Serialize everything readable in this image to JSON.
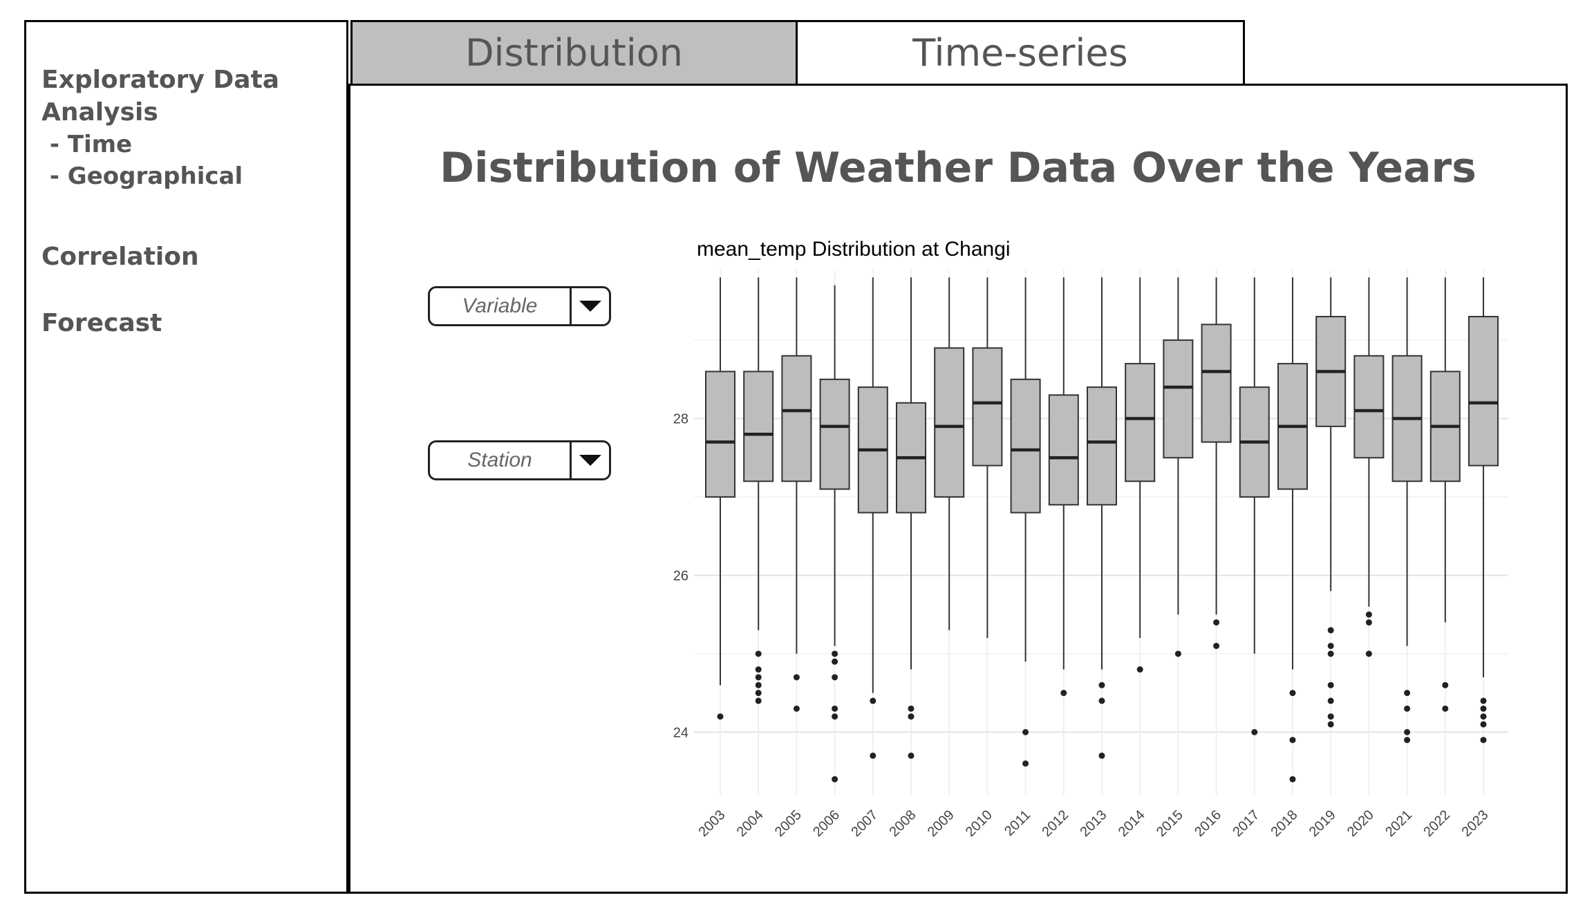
{
  "sidebar": {
    "items": [
      {
        "label": "Exploratory Data"
      },
      {
        "label": "Analysis"
      },
      {
        "label": " - Time"
      },
      {
        "label": " - Geographical"
      },
      {
        "label": "Correlation"
      },
      {
        "label": "Forecast"
      }
    ]
  },
  "tabs": [
    {
      "label": "Distribution",
      "active": true
    },
    {
      "label": "Time-series",
      "active": false
    }
  ],
  "main": {
    "title": "Distribution of Weather Data Over the Years",
    "variable_dropdown": {
      "placeholder": "Variable"
    },
    "station_dropdown": {
      "placeholder": "Station"
    }
  },
  "colors": {
    "active_tab": "#bfbfbf",
    "box_fill": "#bdbdbd",
    "text": "#555555"
  },
  "icons": {
    "dropdown": "caret-down-icon"
  },
  "chart_data": {
    "type": "boxplot",
    "title": "mean_temp Distribution at Changi",
    "xlabel": "",
    "ylabel": "",
    "ylim": [
      23.2,
      29.9
    ],
    "yticks": [
      24,
      26,
      28
    ],
    "grid": true,
    "categories": [
      "2003",
      "2004",
      "2005",
      "2006",
      "2007",
      "2008",
      "2009",
      "2010",
      "2011",
      "2012",
      "2013",
      "2014",
      "2015",
      "2016",
      "2017",
      "2018",
      "2019",
      "2020",
      "2021",
      "2022",
      "2023"
    ],
    "boxes": [
      {
        "q1": 27.0,
        "median": 27.7,
        "q3": 28.6,
        "lower": 24.6,
        "upper": 29.8,
        "outliers": [
          24.2
        ]
      },
      {
        "q1": 27.2,
        "median": 27.8,
        "q3": 28.6,
        "lower": 25.3,
        "upper": 29.8,
        "outliers": [
          25.0,
          24.8,
          24.7,
          24.6,
          24.5,
          24.4
        ]
      },
      {
        "q1": 27.2,
        "median": 28.1,
        "q3": 28.8,
        "lower": 25.0,
        "upper": 29.8,
        "outliers": [
          24.7,
          24.3
        ]
      },
      {
        "q1": 27.1,
        "median": 27.9,
        "q3": 28.5,
        "lower": 25.1,
        "upper": 29.7,
        "outliers": [
          25.0,
          24.9,
          24.7,
          24.3,
          24.2,
          23.4
        ]
      },
      {
        "q1": 26.8,
        "median": 27.6,
        "q3": 28.4,
        "lower": 24.5,
        "upper": 29.8,
        "outliers": [
          24.4,
          23.7
        ]
      },
      {
        "q1": 26.8,
        "median": 27.5,
        "q3": 28.2,
        "lower": 24.8,
        "upper": 29.8,
        "outliers": [
          24.3,
          24.2,
          23.7
        ]
      },
      {
        "q1": 27.0,
        "median": 27.9,
        "q3": 28.9,
        "lower": 25.3,
        "upper": 29.8,
        "outliers": []
      },
      {
        "q1": 27.4,
        "median": 28.2,
        "q3": 28.9,
        "lower": 25.2,
        "upper": 29.8,
        "outliers": []
      },
      {
        "q1": 26.8,
        "median": 27.6,
        "q3": 28.5,
        "lower": 24.9,
        "upper": 29.8,
        "outliers": [
          24.0,
          23.6
        ]
      },
      {
        "q1": 26.9,
        "median": 27.5,
        "q3": 28.3,
        "lower": 24.8,
        "upper": 29.8,
        "outliers": [
          24.5
        ]
      },
      {
        "q1": 26.9,
        "median": 27.7,
        "q3": 28.4,
        "lower": 24.8,
        "upper": 29.8,
        "outliers": [
          24.6,
          24.4,
          23.7
        ]
      },
      {
        "q1": 27.2,
        "median": 28.0,
        "q3": 28.7,
        "lower": 25.2,
        "upper": 29.8,
        "outliers": [
          24.8
        ]
      },
      {
        "q1": 27.5,
        "median": 28.4,
        "q3": 29.0,
        "lower": 25.5,
        "upper": 29.8,
        "outliers": [
          25.0
        ]
      },
      {
        "q1": 27.7,
        "median": 28.6,
        "q3": 29.2,
        "lower": 25.5,
        "upper": 29.8,
        "outliers": [
          25.4,
          25.1
        ]
      },
      {
        "q1": 27.0,
        "median": 27.7,
        "q3": 28.4,
        "lower": 25.0,
        "upper": 29.8,
        "outliers": [
          24.0
        ]
      },
      {
        "q1": 27.1,
        "median": 27.9,
        "q3": 28.7,
        "lower": 24.8,
        "upper": 29.8,
        "outliers": [
          24.5,
          23.9,
          23.4
        ]
      },
      {
        "q1": 27.9,
        "median": 28.6,
        "q3": 29.3,
        "lower": 25.8,
        "upper": 29.8,
        "outliers": [
          25.3,
          25.1,
          25.0,
          24.6,
          24.4,
          24.2,
          24.1
        ]
      },
      {
        "q1": 27.5,
        "median": 28.1,
        "q3": 28.8,
        "lower": 25.6,
        "upper": 29.8,
        "outliers": [
          25.5,
          25.4,
          25.0
        ]
      },
      {
        "q1": 27.2,
        "median": 28.0,
        "q3": 28.8,
        "lower": 25.1,
        "upper": 29.8,
        "outliers": [
          24.5,
          24.3,
          24.0,
          23.9
        ]
      },
      {
        "q1": 27.2,
        "median": 27.9,
        "q3": 28.6,
        "lower": 25.4,
        "upper": 29.8,
        "outliers": [
          24.6,
          24.3
        ]
      },
      {
        "q1": 27.4,
        "median": 28.2,
        "q3": 29.3,
        "lower": 24.7,
        "upper": 29.8,
        "outliers": [
          24.4,
          24.3,
          24.2,
          24.1,
          23.9
        ]
      }
    ]
  }
}
